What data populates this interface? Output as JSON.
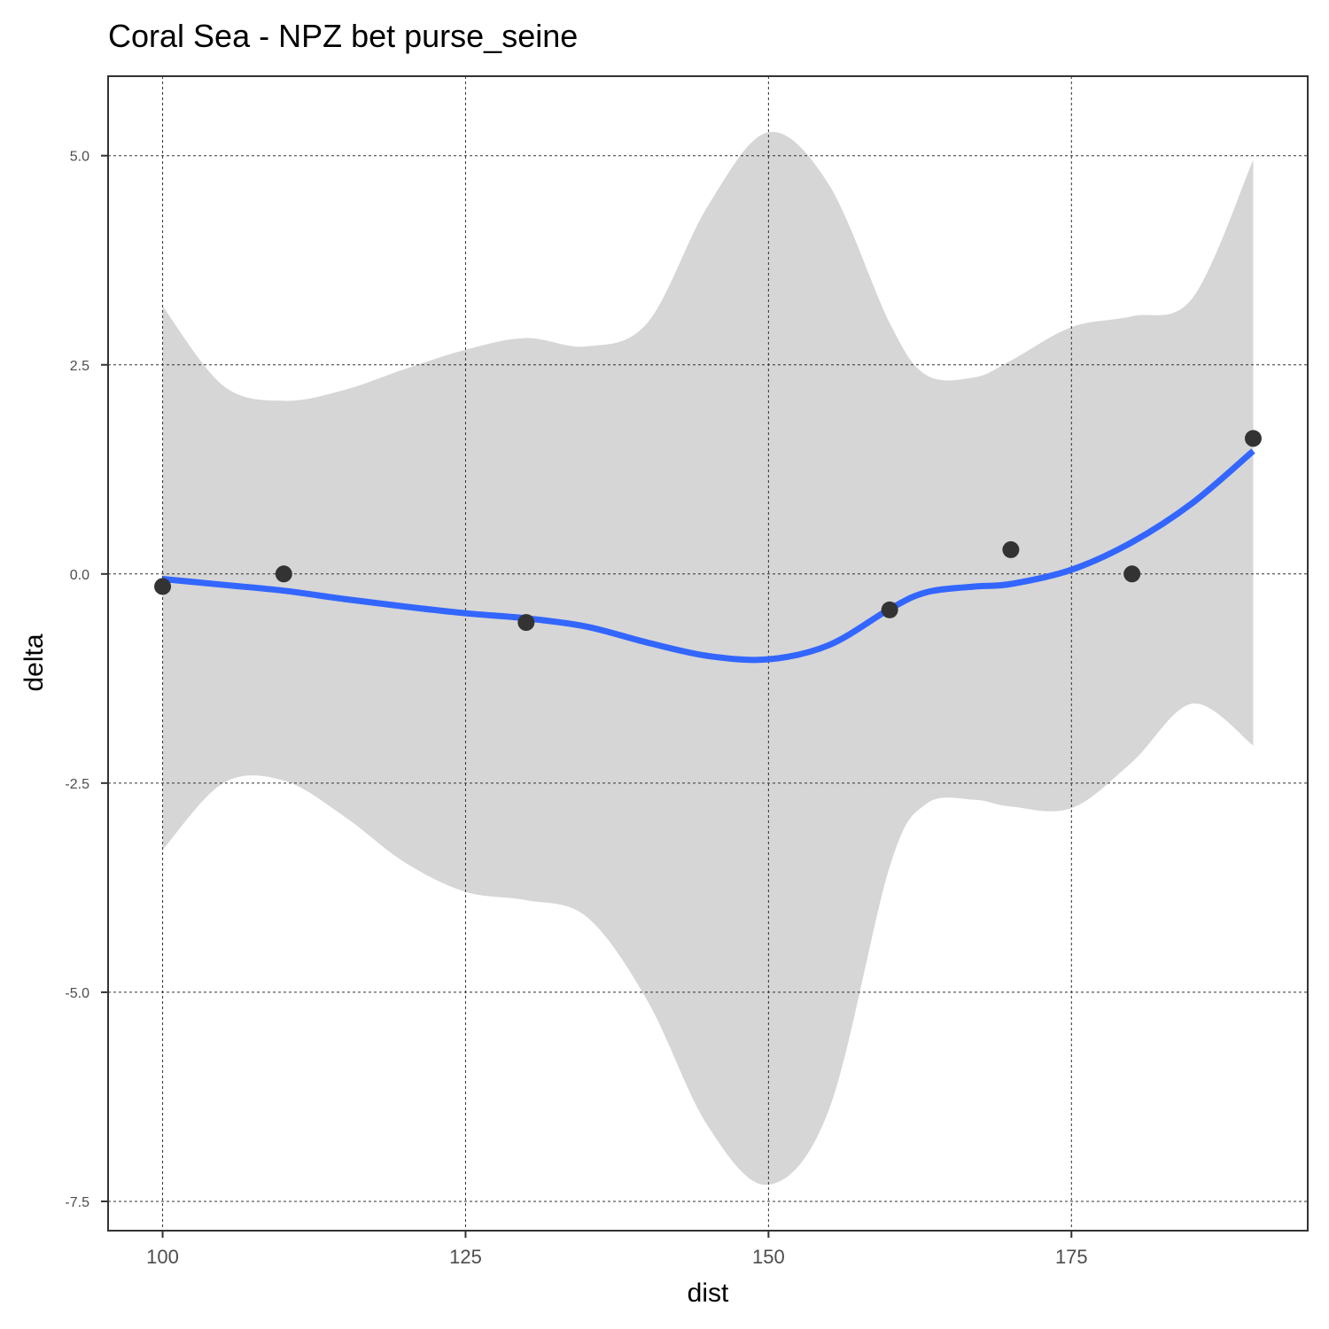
{
  "chart_data": {
    "type": "scatter",
    "title": "Coral Sea - NPZ bet purse_seine",
    "xlabel": "dist",
    "ylabel": "delta",
    "xlim": [
      95.5,
      194.5
    ],
    "ylim": [
      -7.85,
      5.95
    ],
    "x_ticks": [
      100,
      125,
      150,
      175
    ],
    "x_tick_labels": [
      "100",
      "125",
      "150",
      "175"
    ],
    "y_ticks": [
      5.0,
      2.5,
      0.0,
      -2.5,
      -5.0,
      -7.5
    ],
    "y_tick_labels": [
      "5.0",
      "2.5",
      "0.0",
      "-2.5",
      "-5.0",
      "-7.5"
    ],
    "grid": true,
    "points": [
      {
        "x": 100,
        "y": -0.15
      },
      {
        "x": 110,
        "y": 0.0
      },
      {
        "x": 130,
        "y": -0.58
      },
      {
        "x": 160,
        "y": -0.43
      },
      {
        "x": 170,
        "y": 0.29
      },
      {
        "x": 180,
        "y": 0.0
      },
      {
        "x": 190,
        "y": 1.62
      }
    ],
    "smooth": {
      "x": [
        100,
        105,
        110,
        115,
        120,
        125,
        130,
        135,
        140,
        145,
        150,
        155,
        160,
        163,
        167,
        170,
        175,
        180,
        185,
        190
      ],
      "y": [
        -0.06,
        -0.13,
        -0.2,
        -0.3,
        -0.39,
        -0.47,
        -0.53,
        -0.63,
        -0.82,
        -0.98,
        -1.02,
        -0.85,
        -0.42,
        -0.22,
        -0.15,
        -0.12,
        0.05,
        0.38,
        0.85,
        1.47
      ],
      "upper": [
        3.2,
        2.25,
        2.07,
        2.2,
        2.45,
        2.68,
        2.82,
        2.72,
        3.0,
        4.4,
        5.28,
        4.65,
        3.0,
        2.38,
        2.35,
        2.55,
        2.95,
        3.08,
        3.3,
        4.95
      ],
      "lower": [
        -3.3,
        -2.5,
        -2.47,
        -2.9,
        -3.45,
        -3.8,
        -3.9,
        -4.1,
        -5.1,
        -6.6,
        -7.3,
        -6.4,
        -3.5,
        -2.75,
        -2.7,
        -2.78,
        -2.8,
        -2.25,
        -1.55,
        -2.05
      ]
    },
    "colors": {
      "points": "#333333",
      "smooth_line": "#3366FF",
      "ribbon": "#d6d6d6",
      "grid": "#333333",
      "border": "#333333"
    }
  }
}
